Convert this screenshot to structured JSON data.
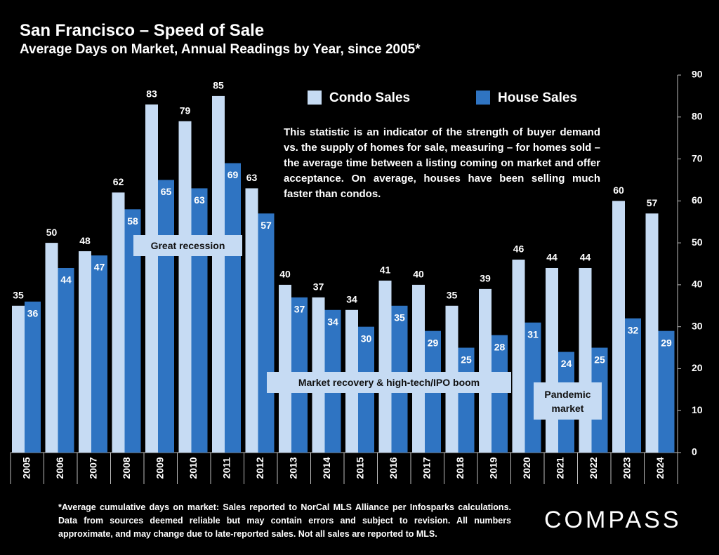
{
  "chart_data": {
    "type": "bar",
    "title": "San Francisco – Speed of Sale",
    "subtitle": "Average Days on Market, Annual Readings by Year, since 2005*",
    "categories": [
      "2005",
      "2006",
      "2007",
      "2008",
      "2009",
      "2010",
      "2011",
      "2012",
      "2013",
      "2014",
      "2015",
      "2016",
      "2017",
      "2018",
      "2019",
      "2020",
      "2021",
      "2022",
      "2023",
      "2024"
    ],
    "series": [
      {
        "name": "Condo Sales",
        "color": "#c6dbf3",
        "values": [
          35,
          50,
          48,
          62,
          83,
          79,
          85,
          63,
          40,
          37,
          34,
          41,
          40,
          35,
          39,
          46,
          44,
          44,
          60,
          57
        ]
      },
      {
        "name": "House Sales",
        "color": "#2f74c2",
        "values": [
          36,
          44,
          47,
          58,
          65,
          63,
          69,
          57,
          37,
          34,
          30,
          35,
          29,
          25,
          28,
          31,
          24,
          25,
          32,
          29
        ]
      }
    ],
    "ylim": [
      0,
      90
    ],
    "yticks": [
      0,
      10,
      20,
      30,
      40,
      50,
      60,
      70,
      80,
      90
    ],
    "y_axis_side": "right",
    "annotations": [
      "Great recession",
      "Market recovery &  high-tech/IPO boom",
      "Pandemic market"
    ],
    "description": "This statistic is an indicator of the strength of buyer demand vs. the supply of homes for sale, measuring – for homes sold – the average time between a listing coming on market and offer acceptance. On average, houses have been selling much faster than condos.",
    "footnote": "*Average cumulative days on market: Sales reported to NorCal MLS Alliance per Infosparks calculations. Data from sources deemed reliable but may contain errors and subject to revision. All numbers approximate, and may change due to late-reported sales. Not all sales are reported to MLS.",
    "logo": "COMPASS"
  }
}
